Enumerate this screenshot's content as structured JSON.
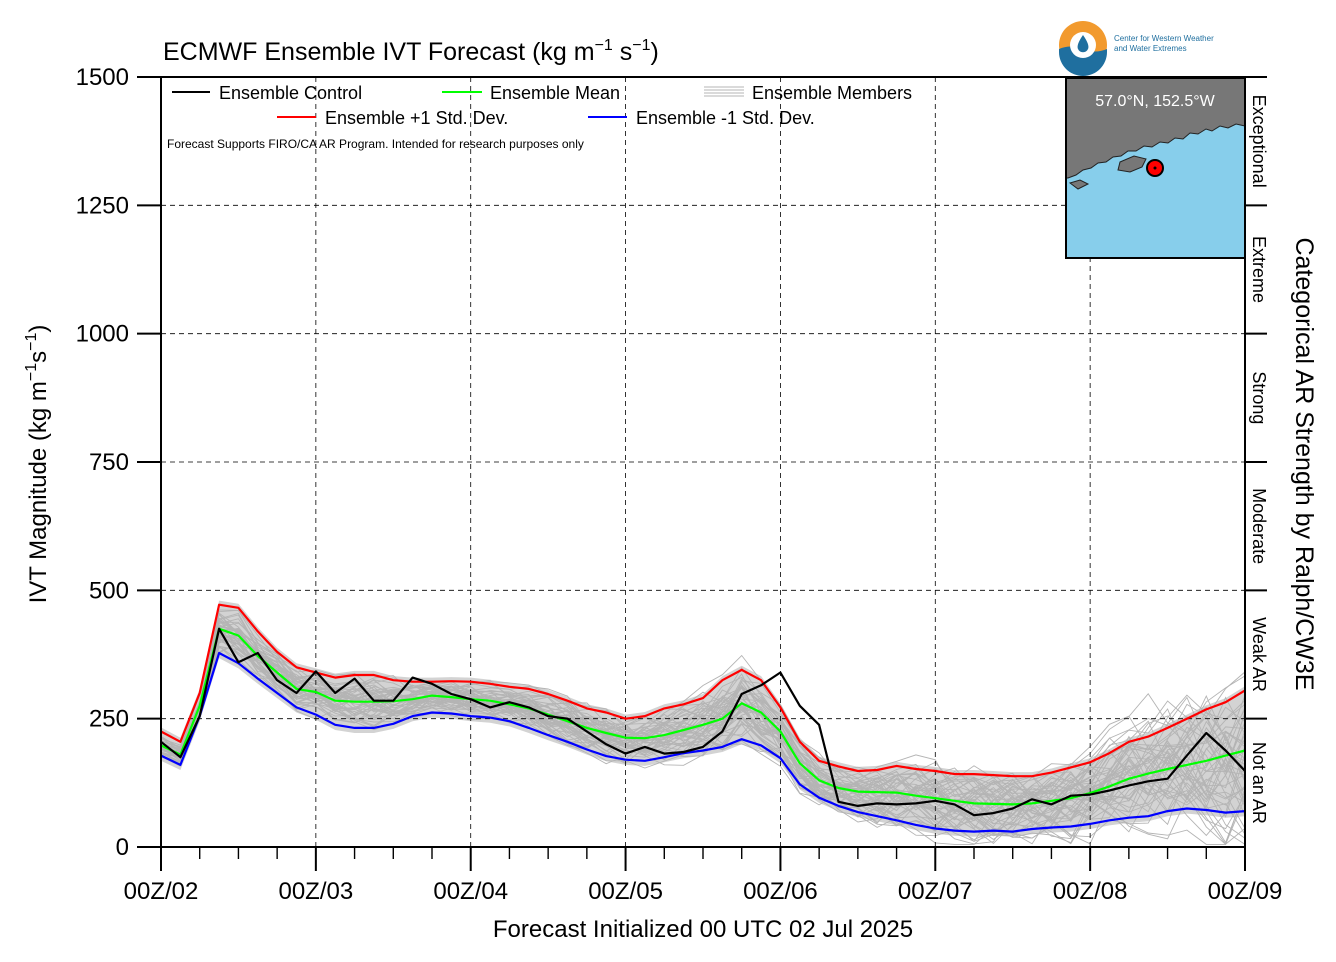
{
  "logo": {
    "org_line1": "Center for Western Weather",
    "org_line2": "and Water Extremes"
  },
  "chart_data": {
    "type": "line",
    "title": "ECMWF Ensemble IVT Forecast (kg m",
    "title_exp1": "−1",
    "title_mid": " s",
    "title_exp2": "−1",
    "title_end": ")",
    "ylabel": "IVT Magnitude (kg m",
    "ylabel_exp1": "−1",
    "ylabel_mid": "s",
    "ylabel_exp2": "−1",
    "ylabel_end": ")",
    "xlabel": "Forecast Initialized 00 UTC 02 Jul 2025",
    "right_label": "Categorical AR Strength by Ralph/CW3E",
    "note": "Forecast Supports FIRO/CA AR Program. Intended for research purposes only",
    "location": "57.0°N, 152.5°W",
    "ylim": [
      0,
      1500
    ],
    "xlim": [
      0,
      168
    ],
    "grid": true,
    "legend_position": "top-left",
    "x_ticks": [
      {
        "t": 0,
        "label": "00Z/02"
      },
      {
        "t": 24,
        "label": "00Z/03"
      },
      {
        "t": 48,
        "label": "00Z/04"
      },
      {
        "t": 72,
        "label": "00Z/05"
      },
      {
        "t": 96,
        "label": "00Z/06"
      },
      {
        "t": 120,
        "label": "00Z/07"
      },
      {
        "t": 144,
        "label": "00Z/08"
      },
      {
        "t": 168,
        "label": "00Z/09"
      }
    ],
    "y_ticks": [
      0,
      250,
      500,
      750,
      1000,
      1250,
      1500
    ],
    "categories": [
      {
        "label": "Not an AR",
        "range": [
          0,
          250
        ]
      },
      {
        "label": "Weak AR",
        "range": [
          250,
          500
        ]
      },
      {
        "label": "Moderate",
        "range": [
          500,
          750
        ]
      },
      {
        "label": "Strong",
        "range": [
          750,
          1000
        ]
      },
      {
        "label": "Extreme",
        "range": [
          1000,
          1250
        ]
      },
      {
        "label": "Exceptional",
        "range": [
          1250,
          1500
        ]
      }
    ],
    "legend": {
      "control": "Ensemble Control",
      "mean": "Ensemble Mean",
      "members": "Ensemble Members",
      "plus_sd": "Ensemble +1 Std. Dev.",
      "minus_sd": "Ensemble -1 Std. Dev."
    },
    "colors": {
      "control": "#000000",
      "mean": "#00ff00",
      "plus_sd": "#ff0000",
      "minus_sd": "#0000ff",
      "members": "#b4b4b4",
      "spread": "#d3d3d3",
      "map_land": "#777777",
      "map_water": "#87ceeb",
      "marker": "#ff0000",
      "logo_orange": "#f29a2e",
      "logo_blue": "#1f6f9f"
    },
    "series": [
      {
        "name": "Ensemble +1 Std. Dev.",
        "key": "plus_sd",
        "x": [
          0,
          3,
          6,
          9,
          12,
          15,
          18,
          21,
          24,
          27,
          30,
          33,
          36,
          39,
          42,
          45,
          48,
          51,
          54,
          57,
          60,
          63,
          66,
          69,
          72,
          75,
          78,
          81,
          84,
          87,
          90,
          93,
          96,
          99,
          102,
          105,
          108,
          111,
          114,
          117,
          120,
          123,
          126,
          129,
          132,
          135,
          138,
          141,
          144,
          147,
          150,
          153,
          156,
          159,
          162,
          165,
          168
        ],
        "y": [
          225,
          205,
          300,
          472,
          466,
          420,
          380,
          350,
          340,
          330,
          335,
          335,
          325,
          322,
          322,
          323,
          322,
          318,
          312,
          308,
          298,
          285,
          270,
          262,
          250,
          255,
          270,
          278,
          290,
          325,
          345,
          325,
          272,
          205,
          168,
          157,
          148,
          150,
          158,
          152,
          148,
          142,
          142,
          140,
          138,
          138,
          145,
          155,
          165,
          183,
          205,
          215,
          232,
          250,
          268,
          282,
          305
        ]
      },
      {
        "name": "Ensemble Mean",
        "key": "mean",
        "x": [
          0,
          3,
          6,
          9,
          12,
          15,
          18,
          21,
          24,
          27,
          30,
          33,
          36,
          39,
          42,
          45,
          48,
          51,
          54,
          57,
          60,
          63,
          66,
          69,
          72,
          75,
          78,
          81,
          84,
          87,
          90,
          93,
          96,
          99,
          102,
          105,
          108,
          111,
          114,
          117,
          120,
          123,
          126,
          129,
          132,
          135,
          138,
          141,
          144,
          147,
          150,
          153,
          156,
          159,
          162,
          165,
          168
        ],
        "y": [
          198,
          180,
          275,
          425,
          412,
          372,
          340,
          308,
          302,
          285,
          283,
          283,
          284,
          288,
          295,
          292,
          288,
          285,
          278,
          270,
          258,
          245,
          232,
          222,
          213,
          212,
          218,
          228,
          238,
          250,
          280,
          262,
          225,
          163,
          130,
          115,
          108,
          107,
          106,
          100,
          95,
          90,
          85,
          84,
          83,
          85,
          90,
          95,
          105,
          118,
          133,
          143,
          152,
          160,
          168,
          178,
          188
        ]
      },
      {
        "name": "Ensemble -1 Std. Dev.",
        "key": "minus_sd",
        "x": [
          0,
          3,
          6,
          9,
          12,
          15,
          18,
          21,
          24,
          27,
          30,
          33,
          36,
          39,
          42,
          45,
          48,
          51,
          54,
          57,
          60,
          63,
          66,
          69,
          72,
          75,
          78,
          81,
          84,
          87,
          90,
          93,
          96,
          99,
          102,
          105,
          108,
          111,
          114,
          117,
          120,
          123,
          126,
          129,
          132,
          135,
          138,
          141,
          144,
          147,
          150,
          153,
          156,
          159,
          162,
          165,
          168
        ],
        "y": [
          178,
          160,
          255,
          378,
          358,
          328,
          300,
          272,
          258,
          238,
          232,
          232,
          240,
          255,
          262,
          260,
          255,
          252,
          245,
          232,
          218,
          205,
          190,
          177,
          170,
          168,
          175,
          183,
          188,
          195,
          210,
          198,
          173,
          122,
          96,
          80,
          68,
          60,
          52,
          43,
          36,
          32,
          30,
          32,
          30,
          35,
          38,
          40,
          45,
          52,
          57,
          60,
          70,
          75,
          72,
          67,
          70
        ]
      },
      {
        "name": "Ensemble Control",
        "key": "control",
        "x": [
          0,
          3,
          6,
          9,
          12,
          15,
          18,
          21,
          24,
          27,
          30,
          33,
          36,
          39,
          42,
          45,
          48,
          51,
          54,
          57,
          60,
          63,
          66,
          69,
          72,
          75,
          78,
          81,
          84,
          87,
          90,
          93,
          96,
          99,
          102,
          105,
          108,
          111,
          114,
          117,
          120,
          123,
          126,
          129,
          132,
          135,
          138,
          141,
          144,
          147,
          150,
          153,
          156,
          159,
          162,
          165,
          168
        ],
        "y": [
          205,
          175,
          255,
          425,
          360,
          378,
          325,
          300,
          342,
          300,
          328,
          285,
          285,
          330,
          318,
          298,
          288,
          272,
          282,
          272,
          255,
          250,
          225,
          200,
          182,
          195,
          182,
          185,
          195,
          225,
          298,
          315,
          340,
          275,
          238,
          88,
          80,
          85,
          83,
          85,
          90,
          83,
          62,
          66,
          75,
          93,
          83,
          100,
          102,
          110,
          120,
          128,
          133,
          178,
          222,
          188,
          148
        ]
      }
    ]
  }
}
